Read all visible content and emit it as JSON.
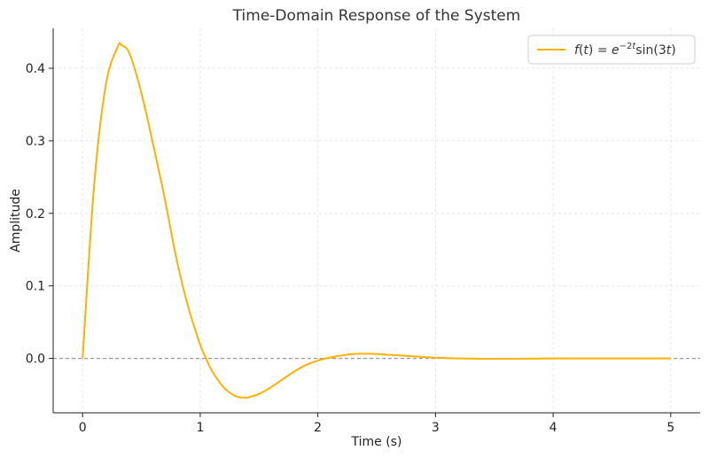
{
  "chart_data": {
    "type": "line",
    "title": "Time-Domain Response of the System",
    "xlabel": "Time (s)",
    "ylabel": "Amplitude",
    "xlim": [
      -0.25,
      5.25
    ],
    "ylim": [
      -0.075,
      0.455
    ],
    "x_ticks": [
      "0",
      "1",
      "2",
      "3",
      "4",
      "5"
    ],
    "y_ticks": [
      "0.0",
      "0.1",
      "0.2",
      "0.3",
      "0.4"
    ],
    "grid": true,
    "legend_position": "top-right",
    "reference_line": {
      "y": 0,
      "style": "dashed"
    },
    "series": [
      {
        "name": "f(t) = e^{-2t} sin(3t)",
        "color": "#FFB000",
        "x": [
          0,
          0.1,
          0.2,
          0.3,
          0.33,
          0.4,
          0.5,
          0.6,
          0.7,
          0.8,
          0.9,
          1.0,
          1.05,
          1.1,
          1.2,
          1.3,
          1.37,
          1.4,
          1.5,
          1.6,
          1.7,
          1.8,
          1.9,
          2.0,
          2.1,
          2.2,
          2.3,
          2.4,
          2.5,
          2.6,
          2.8,
          3.0,
          3.2,
          3.4,
          3.6,
          3.8,
          4.0,
          4.2,
          4.5,
          5.0
        ],
        "y": [
          0.0,
          0.242,
          0.379,
          0.43,
          0.432,
          0.42,
          0.366,
          0.295,
          0.219,
          0.136,
          0.07,
          0.019,
          0.0,
          -0.017,
          -0.04,
          -0.052,
          -0.054,
          -0.054,
          -0.049,
          -0.04,
          -0.029,
          -0.018,
          -0.009,
          -0.003,
          0.001,
          0.004,
          0.006,
          0.0065,
          0.006,
          0.005,
          0.003,
          0.001,
          0.0,
          -0.0005,
          -0.0005,
          -0.0003,
          -0.0001,
          0.0,
          0.0,
          0.0
        ]
      }
    ]
  }
}
